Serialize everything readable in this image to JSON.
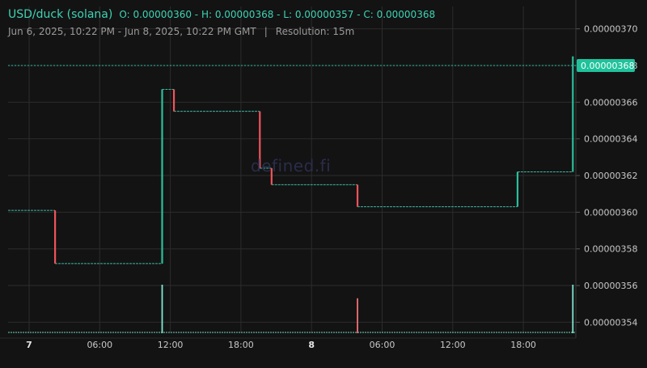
{
  "header": {
    "pair": "USD/duck (solana)",
    "ohlc": "O: 0.00000360 - H: 0.00000368 - L: 0.00000357 - C: 0.00000368",
    "range": "Jun 6, 2025, 10:22 PM - Jun 8, 2025, 10:22 PM GMT",
    "separator": "|",
    "resolution": "Resolution: 15m"
  },
  "watermark": "defined.fi",
  "colors": {
    "background": "#131313",
    "up": "#2bbf9b",
    "down": "#f0545a",
    "grid": "#2c2c2c",
    "axis_text": "#c8c8c8",
    "price_tag": "#1fc29b"
  },
  "chart_data": {
    "type": "candlestick",
    "title": "USD/duck (solana)",
    "xlabel": "",
    "ylabel": "",
    "ylim": [
      3.534e-06,
      3.7122e-06
    ],
    "grid": true,
    "price_axis_ticks": [
      "0.00000354",
      "0.00000356",
      "0.00000358",
      "0.00000360",
      "0.00000362",
      "0.00000364",
      "0.00000366",
      "0.00000368",
      "0.00000370"
    ],
    "time_axis_ticks": [
      {
        "hour": 0,
        "label": "7",
        "bold": true
      },
      {
        "hour": 6,
        "label": "06:00",
        "bold": false
      },
      {
        "hour": 12,
        "label": "12:00",
        "bold": false
      },
      {
        "hour": 18,
        "label": "18:00",
        "bold": false
      },
      {
        "hour": 24,
        "label": "8",
        "bold": true
      },
      {
        "hour": 30,
        "label": "06:00",
        "bold": false
      },
      {
        "hour": 36,
        "label": "12:00",
        "bold": false
      },
      {
        "hour": 42,
        "label": "18:00",
        "bold": false
      }
    ],
    "current_price": "0.00000368",
    "current_price_value": 3.68e-06,
    "candles": [
      {
        "hour": 2.2,
        "open": 3.601e-06,
        "close": 3.572e-06,
        "dir": "down"
      },
      {
        "hour": 11.3,
        "open": 3.572e-06,
        "close": 3.667e-06,
        "dir": "up"
      },
      {
        "hour": 12.3,
        "open": 3.667e-06,
        "close": 3.655e-06,
        "dir": "down"
      },
      {
        "hour": 19.6,
        "open": 3.655e-06,
        "close": 3.624e-06,
        "dir": "down"
      },
      {
        "hour": 20.6,
        "open": 3.624e-06,
        "close": 3.615e-06,
        "dir": "down"
      },
      {
        "hour": 27.9,
        "open": 3.615e-06,
        "close": 3.603e-06,
        "dir": "down"
      },
      {
        "hour": 41.5,
        "open": 3.603e-06,
        "close": 3.622e-06,
        "dir": "up"
      },
      {
        "hour": 46.2,
        "open": 3.622e-06,
        "close": 3.685e-06,
        "dir": "up"
      }
    ],
    "volume_spikes": [
      {
        "hour": 11.3,
        "height": 1.0,
        "dir": "up"
      },
      {
        "hour": 27.9,
        "height": 0.72,
        "dir": "down"
      },
      {
        "hour": 46.2,
        "height": 1.0,
        "dir": "up"
      }
    ]
  }
}
